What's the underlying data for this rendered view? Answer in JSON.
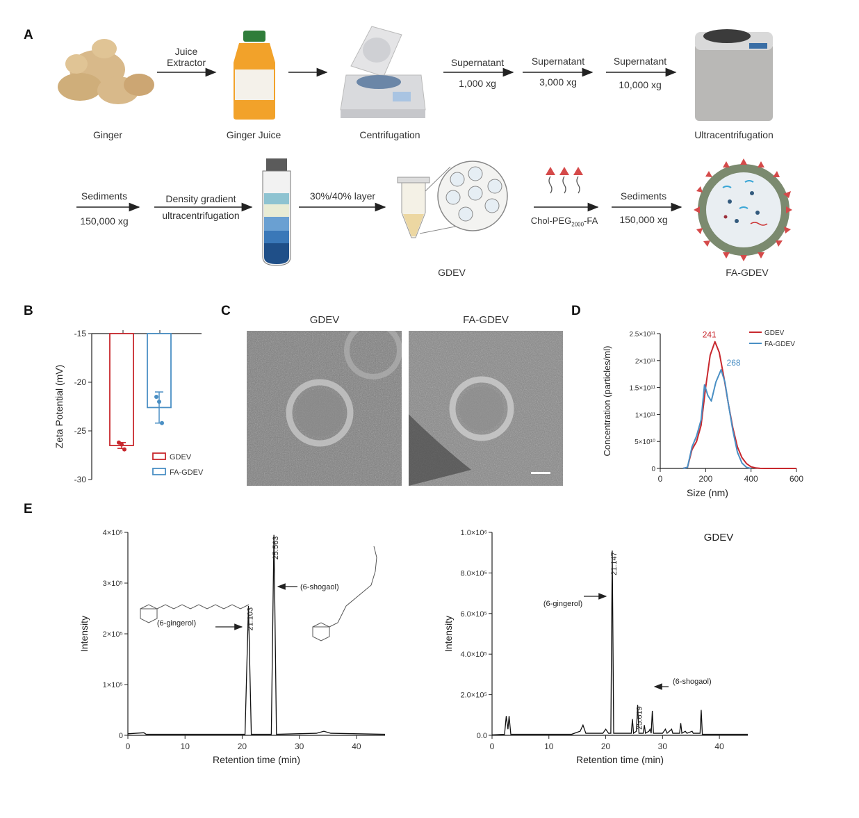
{
  "panels": {
    "a": "A",
    "b": "B",
    "c": "C",
    "d": "D",
    "e": "E"
  },
  "workflow": {
    "row1": {
      "ginger": "Ginger",
      "juice_extractor_1": "Juice",
      "juice_extractor_2": "Extractor",
      "ginger_juice": "Ginger Juice",
      "centrifugation": "Centrifugation",
      "sup1_top": "Supernatant",
      "sup1_bottom": "1,000 xg",
      "sup2_top": "Supernatant",
      "sup2_bottom": "3,000 xg",
      "sup3_top": "Supernatant",
      "sup3_bottom": "10,000 xg",
      "ultracentrifugation": "Ultracentrifugation"
    },
    "row2": {
      "sed1_top": "Sediments",
      "sed1_bottom": "150,000 xg",
      "density_1": "Density gradient",
      "density_2": "ultracentrifugation",
      "layer": "30%/40% layer",
      "gdev": "GDEV",
      "chol_main": "Chol-PEG",
      "chol_sub": "2000",
      "chol_end": "-FA",
      "sed2_top": "Sediments",
      "sed2_bottom": "150,000 xg",
      "fa_gdev": "FA-GDEV"
    }
  },
  "colors": {
    "gdev": "#c8282e",
    "fa_gdev": "#4a8fc4"
  },
  "chart_data": [
    {
      "id": "B",
      "type": "bar",
      "categories": [
        "GDEV",
        "FA-GDEV"
      ],
      "values": [
        -26.5,
        -22.6
      ],
      "errors": [
        0.3,
        1.6
      ],
      "points": [
        [
          -26.2,
          -26.4,
          -26.9
        ],
        [
          -21.5,
          -22.0,
          -24.2
        ]
      ],
      "ylabel": "Zeta Potential (mV)",
      "ylim": [
        -30,
        -15
      ],
      "yticks": [
        -15,
        -20,
        -25,
        -30
      ],
      "legend": [
        "GDEV",
        "FA-GDEV"
      ],
      "legend_position": "bottom-right"
    },
    {
      "id": "D",
      "type": "line",
      "xlabel": "Size (nm)",
      "ylabel": "Concentration (particles/ml)",
      "xlim": [
        0,
        600
      ],
      "ylim": [
        0,
        250000000000.0
      ],
      "xticks": [
        0,
        200,
        400,
        600
      ],
      "yticks": [
        "0",
        "5×10¹⁰",
        "1×10¹¹",
        "1.5×10¹¹",
        "2×10¹¹",
        "2.5×10¹¹"
      ],
      "legend_position": "top-right",
      "series": [
        {
          "name": "GDEV",
          "peak_label": "241",
          "x": [
            100,
            120,
            140,
            160,
            180,
            200,
            220,
            241,
            260,
            280,
            300,
            320,
            340,
            360,
            380,
            400,
            420,
            440,
            460,
            600
          ],
          "y": [
            0,
            2000000000.0,
            35000000000.0,
            50000000000.0,
            80000000000.0,
            150000000000.0,
            210000000000.0,
            235000000000.0,
            215000000000.0,
            170000000000.0,
            120000000000.0,
            75000000000.0,
            40000000000.0,
            20000000000.0,
            9000000000.0,
            3000000000.0,
            1000000000.0,
            200000000.0,
            0,
            0
          ]
        },
        {
          "name": "FA-GDEV",
          "peak_label": "268",
          "x": [
            100,
            120,
            140,
            160,
            180,
            195,
            210,
            225,
            245,
            268,
            285,
            300,
            320,
            340,
            360,
            380,
            400
          ],
          "y": [
            0,
            2000000000.0,
            40000000000.0,
            60000000000.0,
            90000000000.0,
            155000000000.0,
            135000000000.0,
            125000000000.0,
            160000000000.0,
            183000000000.0,
            160000000000.0,
            120000000000.0,
            70000000000.0,
            30000000000.0,
            10000000000.0,
            2000000000.0,
            0
          ]
        }
      ]
    },
    {
      "id": "E-left",
      "type": "line",
      "xlabel": "Retention time (min)",
      "ylabel": "Intensity",
      "xlim": [
        0,
        45
      ],
      "ylim": [
        0,
        400000.0
      ],
      "xticks": [
        0,
        10,
        20,
        30,
        40
      ],
      "yticks": [
        "0",
        "1×10⁵",
        "2×10⁵",
        "3×10⁵",
        "4×10⁵"
      ],
      "peaks": [
        {
          "rt": "21.103",
          "x": 21.103,
          "y": 255000.0,
          "compound": "(6-gingerol)"
        },
        {
          "rt": "25.563",
          "x": 25.563,
          "y": 395000.0,
          "compound": "(6-shogaol)"
        }
      ],
      "baseline": [
        [
          0,
          3000.0
        ],
        [
          2.8,
          5000.0
        ],
        [
          3.2,
          2000.0
        ],
        [
          20.5,
          2000.0
        ],
        [
          21.1,
          255000.0
        ],
        [
          21.6,
          2000.0
        ],
        [
          25.1,
          2000.0
        ],
        [
          25.56,
          395000.0
        ],
        [
          26.0,
          2000.0
        ],
        [
          33,
          4000.0
        ],
        [
          34.3,
          8000.0
        ],
        [
          35.5,
          4000.0
        ],
        [
          45,
          2000.0
        ]
      ]
    },
    {
      "id": "E-right",
      "type": "line",
      "title": "GDEV",
      "xlabel": "Retention time (min)",
      "ylabel": "Intensity",
      "xlim": [
        0,
        45
      ],
      "ylim": [
        0,
        1000000.0
      ],
      "xticks": [
        0,
        10,
        20,
        30,
        40
      ],
      "yticks": [
        "0.0",
        "2.0×10⁵",
        "4.0×10⁵",
        "6.0×10⁵",
        "8.0×10⁵",
        "1.0×10⁶"
      ],
      "peaks": [
        {
          "rt": "21.147",
          "x": 21.147,
          "y": 910000.0,
          "compound": "(6-gingerol)"
        },
        {
          "rt": "25.619",
          "x": 25.619,
          "y": 150000.0,
          "compound": "(6-shogaol)"
        }
      ],
      "trace": [
        [
          0,
          2000.0
        ],
        [
          2.2,
          5000.0
        ],
        [
          2.5,
          95000.0
        ],
        [
          2.8,
          30000.0
        ],
        [
          3.0,
          95000.0
        ],
        [
          3.3,
          5000.0
        ],
        [
          14,
          5000.0
        ],
        [
          15.5,
          20000.0
        ],
        [
          16,
          50000.0
        ],
        [
          16.5,
          10000.0
        ],
        [
          19.5,
          10000.0
        ],
        [
          20,
          30000.0
        ],
        [
          20.5,
          10000.0
        ],
        [
          20.9,
          10000.0
        ],
        [
          21.15,
          910000.0
        ],
        [
          21.4,
          10000.0
        ],
        [
          24.5,
          10000.0
        ],
        [
          24.7,
          80000.0
        ],
        [
          24.9,
          10000.0
        ],
        [
          25.4,
          20000.0
        ],
        [
          25.62,
          150000.0
        ],
        [
          25.85,
          10000.0
        ],
        [
          26.6,
          10000.0
        ],
        [
          26.8,
          50000.0
        ],
        [
          27.0,
          10000.0
        ],
        [
          27.6,
          20000.0
        ],
        [
          27.8,
          30000.0
        ],
        [
          28.0,
          10000.0
        ],
        [
          28.2,
          120000.0
        ],
        [
          28.4,
          10000.0
        ],
        [
          30,
          10000.0
        ],
        [
          30.5,
          30000.0
        ],
        [
          30.8,
          10000.0
        ],
        [
          31.6,
          30000.0
        ],
        [
          31.8,
          10000.0
        ],
        [
          33,
          10000.0
        ],
        [
          33.2,
          60000.0
        ],
        [
          33.4,
          10000.0
        ],
        [
          34,
          20000.0
        ],
        [
          34.3,
          10000.0
        ],
        [
          35.2,
          20000.0
        ],
        [
          35.4,
          10000.0
        ],
        [
          36.6,
          10000.0
        ],
        [
          36.8,
          125000.0
        ],
        [
          37.0,
          5000.0
        ],
        [
          45,
          5000.0
        ]
      ]
    }
  ],
  "tem": {
    "left_title": "GDEV",
    "right_title": "FA-GDEV"
  }
}
